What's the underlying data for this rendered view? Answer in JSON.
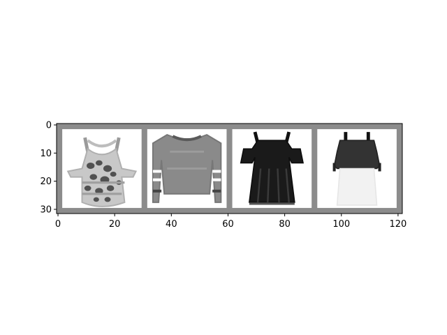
{
  "figure": {
    "background": "#ffffff",
    "frame_color": "#8c8c8c",
    "tile_background": "#ffffff"
  },
  "axes": {
    "xlim": [
      -0.5,
      121.5
    ],
    "ylim": [
      31.5,
      -0.5
    ],
    "x_ticks": [
      0,
      20,
      40,
      60,
      80,
      100,
      120
    ],
    "y_ticks": [
      0,
      10,
      20,
      30
    ],
    "grid": false
  },
  "image_grid": {
    "rows": 1,
    "columns": 4,
    "tile_size": 28,
    "padding": 2,
    "tiles": [
      {
        "icon": "patterned-tank-top-icon"
      },
      {
        "icon": "gray-sweater-icon"
      },
      {
        "icon": "black-dress-icon"
      },
      {
        "icon": "top-with-white-skirt-icon"
      }
    ]
  }
}
